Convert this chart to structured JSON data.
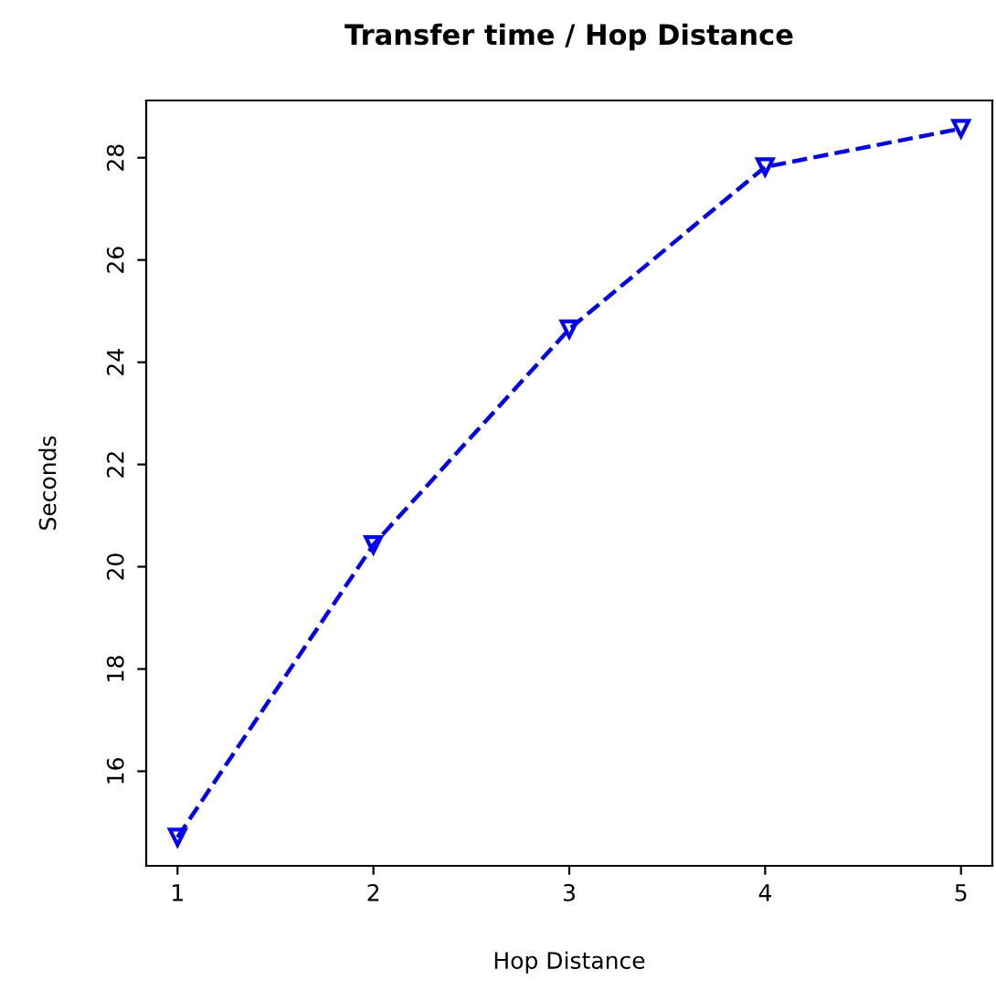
{
  "chart_data": {
    "type": "line",
    "title": "Transfer time / Hop Distance",
    "xlabel": "Hop Distance",
    "ylabel": "Seconds",
    "x": [
      1,
      2,
      3,
      4,
      5
    ],
    "series": [
      {
        "color": "#0000ff",
        "values": [
          14.71,
          20.43,
          24.65,
          27.82,
          28.57
        ]
      }
    ],
    "xlim": [
      0.84,
      5.16
    ],
    "xticks": [
      1,
      2,
      3,
      4,
      5
    ],
    "ylim": [
      14.15,
      29.12
    ],
    "yticks": [
      16,
      18,
      20,
      22,
      24,
      26,
      28
    ],
    "grid": false,
    "legend": false,
    "marker": "triangle",
    "line_style": "dashed"
  }
}
